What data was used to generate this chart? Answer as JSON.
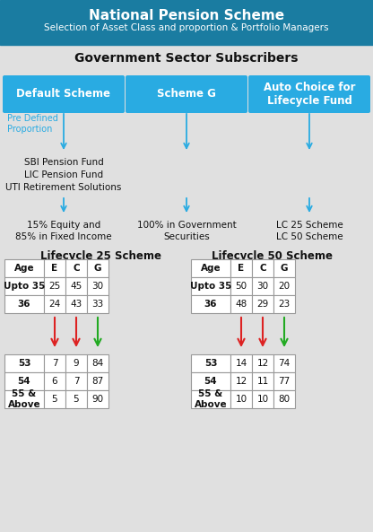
{
  "title": "National Pension Scheme",
  "subtitle": "Selection of Asset Class and proportion & Portfolio Managers",
  "section_title": "Government Sector Subscribers",
  "header_bg": "#1a7ca1",
  "box_bg": "#29abe2",
  "body_bg": "#e0e0e0",
  "arrow_blue": "#29abe2",
  "arrow_red": "#dd2222",
  "arrow_green": "#22aa22",
  "boxes": [
    "Default Scheme",
    "Scheme G",
    "Auto Choice for\nLifecycle Fund"
  ],
  "pre_defined": "Pre Defined\nProportion",
  "fund_managers": "SBI Pension Fund\nLIC Pension Fund\nUTI Retirement Solutions",
  "outcomes": [
    "15% Equity and\n85% in Fixed Income",
    "100% in Government\nSecurities",
    "LC 25 Scheme\nLC 50 Scheme"
  ],
  "lc25_title": "Lifecycle 25 Scheme",
  "lc50_title": "Lifecycle 50 Scheme",
  "lc25_headers": [
    "Age",
    "E",
    "C",
    "G"
  ],
  "lc50_headers": [
    "Age",
    "E",
    "C",
    "G"
  ],
  "lc25_top": [
    [
      "Upto 35",
      "25",
      "45",
      "30"
    ],
    [
      "36",
      "24",
      "43",
      "33"
    ]
  ],
  "lc25_bot": [
    [
      "53",
      "7",
      "9",
      "84"
    ],
    [
      "54",
      "6",
      "7",
      "87"
    ],
    [
      "55 &\nAbove",
      "5",
      "5",
      "90"
    ]
  ],
  "lc50_top": [
    [
      "Upto 35",
      "50",
      "30",
      "20"
    ],
    [
      "36",
      "48",
      "29",
      "23"
    ]
  ],
  "lc50_bot": [
    [
      "53",
      "14",
      "12",
      "74"
    ],
    [
      "54",
      "12",
      "11",
      "77"
    ],
    [
      "55 &\nAbove",
      "10",
      "10",
      "80"
    ]
  ]
}
